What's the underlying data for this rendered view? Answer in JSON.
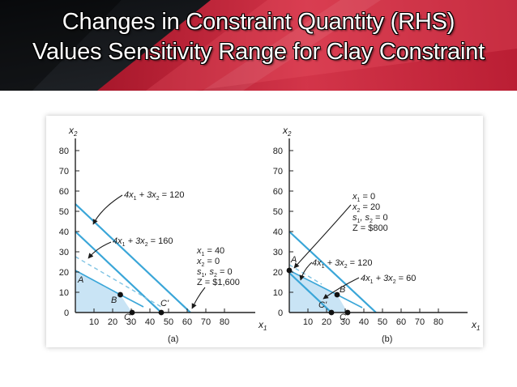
{
  "title": {
    "line1": "Changes in Constraint Quantity (RHS)",
    "line2": "Values Sensitivity Range for Clay Constraint"
  },
  "colors": {
    "banner_dark": "#15181c",
    "banner_red": "#d7283e",
    "constraint_line": "#3aa6d8",
    "feasible_fill": "#c9e4f5",
    "axis": "#222222"
  },
  "axis_ticks": {
    "x": [
      "10",
      "20",
      "30",
      "40",
      "50",
      "60",
      "70",
      "80"
    ],
    "y": [
      "10",
      "20",
      "30",
      "40",
      "50",
      "60",
      "70",
      "80"
    ],
    "origin": "0"
  },
  "graphs": [
    {
      "caption": "(a)",
      "x_axis_label": "x",
      "x_axis_sub": "1",
      "y_axis_label": "x",
      "y_axis_sub": "2",
      "constraint_labels": [
        {
          "text": "4x",
          "sub1": "1",
          "mid": " + 3x",
          "sub2": "2",
          "end": " = 120"
        },
        {
          "text": "4x",
          "sub1": "1",
          "mid": " + 3x",
          "sub2": "2",
          "end": " = 160"
        }
      ],
      "solution": [
        "x",
        "1",
        " = 40",
        "x",
        "2",
        " = 0",
        "s",
        "1",
        ", s",
        "2",
        " = 0",
        "Z = $1,600"
      ],
      "points": [
        "A",
        "B",
        "C",
        "C'"
      ]
    },
    {
      "caption": "(b)",
      "x_axis_label": "x",
      "x_axis_sub": "1",
      "y_axis_label": "x",
      "y_axis_sub": "2",
      "constraint_labels": [
        {
          "text": "4x",
          "sub1": "1",
          "mid": " + 3x",
          "sub2": "2",
          "end": " = 120"
        },
        {
          "text": "4x",
          "sub1": "1",
          "mid": " + 3x",
          "sub2": "2",
          "end": " = 60"
        }
      ],
      "solution": [
        "x",
        "1",
        " = 0",
        "x",
        "2",
        " = 20",
        "s",
        "1",
        ", s",
        "2",
        " = 0",
        "Z = $800"
      ],
      "points": [
        "A",
        "B",
        "C",
        "C'"
      ]
    }
  ]
}
